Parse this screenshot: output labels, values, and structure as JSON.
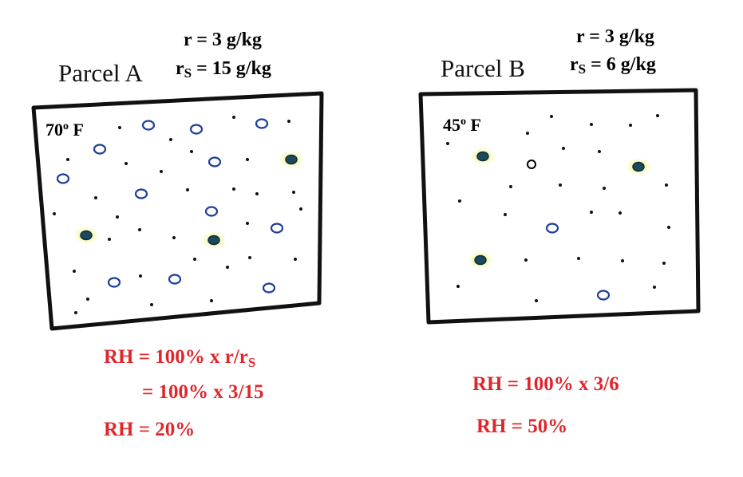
{
  "parcel_a": {
    "title": "Parcel A",
    "r": "r = 3 g/kg",
    "rs": {
      "base": "r",
      "sub": "S",
      "rest": " = 15 g/kg"
    },
    "temp": {
      "num": "70",
      "deg": "o",
      "unit": " F"
    },
    "rh_formula": {
      "text": "RH = 100% x r/r",
      "sub": "S"
    },
    "rh_calc": "= 100% x 3/15",
    "rh_result": "RH = 20%"
  },
  "parcel_b": {
    "title": "Parcel B",
    "r": "r = 3 g/kg",
    "rs": {
      "base": "r",
      "sub": "S",
      "rest": " = 6 g/kg"
    },
    "temp": {
      "num": "45",
      "deg": "o",
      "unit": " F"
    },
    "rh_calc": "RH = 100% x 3/6",
    "rh_result": "RH = 50%"
  }
}
